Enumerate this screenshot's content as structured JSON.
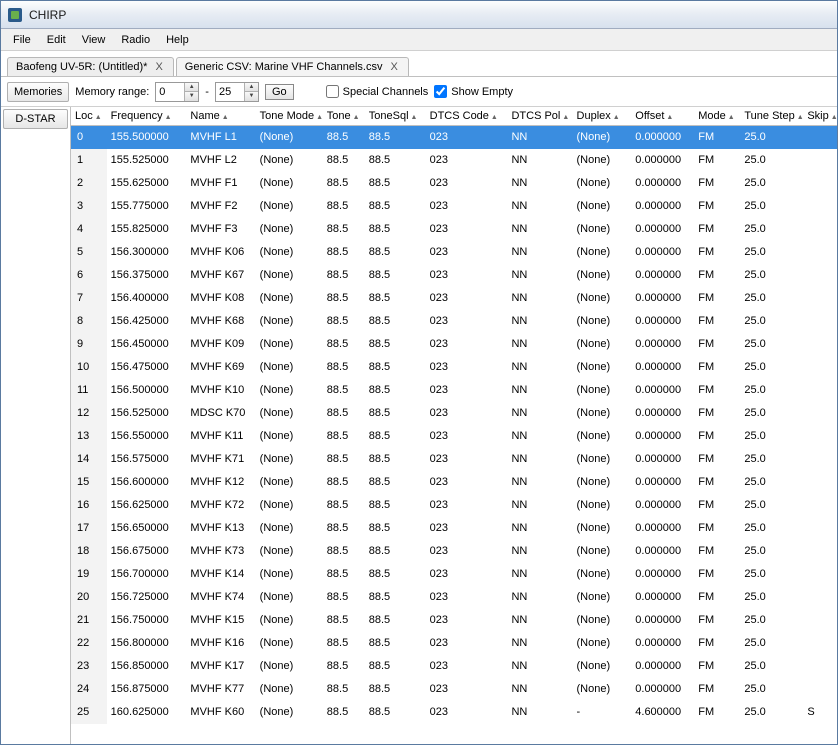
{
  "window": {
    "title": "CHIRP"
  },
  "menu": {
    "items": [
      "File",
      "Edit",
      "View",
      "Radio",
      "Help"
    ]
  },
  "tabs": [
    {
      "label": "Baofeng UV-5R: (Untitled)*",
      "active": false
    },
    {
      "label": "Generic CSV: Marine VHF Channels.csv",
      "active": true
    }
  ],
  "toolbar": {
    "memories_btn": "Memories",
    "range_label": "Memory range:",
    "range_from": "0",
    "range_dash": "-",
    "range_to": "25",
    "go_label": "Go",
    "special_label": "Special Channels",
    "special_checked": false,
    "showempty_label": "Show Empty",
    "showempty_checked": true
  },
  "side": {
    "dstar": "D-STAR"
  },
  "grid": {
    "columns": [
      "Loc",
      "Frequency",
      "Name",
      "Tone Mode",
      "Tone",
      "ToneSql",
      "DTCS Code",
      "DTCS Pol",
      "Duplex",
      "Offset",
      "Mode",
      "Tune Step",
      "Skip"
    ],
    "col_classes": [
      "col-loc",
      "col-freq",
      "col-name",
      "col-tmode",
      "col-tone",
      "col-tsql",
      "col-dcode",
      "col-dpol",
      "col-dup",
      "col-off",
      "col-mode",
      "col-tstep",
      "col-skip"
    ],
    "selected_index": 0,
    "rows": [
      {
        "loc": "0",
        "freq": "155.500000",
        "name": "MVHF L1",
        "tmode": "(None)",
        "tone": "88.5",
        "tsql": "88.5",
        "dcode": "023",
        "dpol": "NN",
        "dup": "",
        "off_display": "(None)",
        "off": "0.000000",
        "mode": "FM",
        "tstep": "25.0",
        "skip": ""
      },
      {
        "loc": "1",
        "freq": "155.525000",
        "name": "MVHF L2",
        "tmode": "(None)",
        "tone": "88.5",
        "tsql": "88.5",
        "dcode": "023",
        "dpol": "NN",
        "dup": "",
        "off_display": "(None)",
        "off": "0.000000",
        "mode": "FM",
        "tstep": "25.0",
        "skip": ""
      },
      {
        "loc": "2",
        "freq": "155.625000",
        "name": "MVHF F1",
        "tmode": "(None)",
        "tone": "88.5",
        "tsql": "88.5",
        "dcode": "023",
        "dpol": "NN",
        "dup": "",
        "off_display": "(None)",
        "off": "0.000000",
        "mode": "FM",
        "tstep": "25.0",
        "skip": ""
      },
      {
        "loc": "3",
        "freq": "155.775000",
        "name": "MVHF F2",
        "tmode": "(None)",
        "tone": "88.5",
        "tsql": "88.5",
        "dcode": "023",
        "dpol": "NN",
        "dup": "",
        "off_display": "(None)",
        "off": "0.000000",
        "mode": "FM",
        "tstep": "25.0",
        "skip": ""
      },
      {
        "loc": "4",
        "freq": "155.825000",
        "name": "MVHF F3",
        "tmode": "(None)",
        "tone": "88.5",
        "tsql": "88.5",
        "dcode": "023",
        "dpol": "NN",
        "dup": "",
        "off_display": "(None)",
        "off": "0.000000",
        "mode": "FM",
        "tstep": "25.0",
        "skip": ""
      },
      {
        "loc": "5",
        "freq": "156.300000",
        "name": "MVHF K06",
        "tmode": "(None)",
        "tone": "88.5",
        "tsql": "88.5",
        "dcode": "023",
        "dpol": "NN",
        "dup": "",
        "off_display": "(None)",
        "off": "0.000000",
        "mode": "FM",
        "tstep": "25.0",
        "skip": ""
      },
      {
        "loc": "6",
        "freq": "156.375000",
        "name": "MVHF K67",
        "tmode": "(None)",
        "tone": "88.5",
        "tsql": "88.5",
        "dcode": "023",
        "dpol": "NN",
        "dup": "",
        "off_display": "(None)",
        "off": "0.000000",
        "mode": "FM",
        "tstep": "25.0",
        "skip": ""
      },
      {
        "loc": "7",
        "freq": "156.400000",
        "name": "MVHF K08",
        "tmode": "(None)",
        "tone": "88.5",
        "tsql": "88.5",
        "dcode": "023",
        "dpol": "NN",
        "dup": "",
        "off_display": "(None)",
        "off": "0.000000",
        "mode": "FM",
        "tstep": "25.0",
        "skip": ""
      },
      {
        "loc": "8",
        "freq": "156.425000",
        "name": "MVHF K68",
        "tmode": "(None)",
        "tone": "88.5",
        "tsql": "88.5",
        "dcode": "023",
        "dpol": "NN",
        "dup": "",
        "off_display": "(None)",
        "off": "0.000000",
        "mode": "FM",
        "tstep": "25.0",
        "skip": ""
      },
      {
        "loc": "9",
        "freq": "156.450000",
        "name": "MVHF K09",
        "tmode": "(None)",
        "tone": "88.5",
        "tsql": "88.5",
        "dcode": "023",
        "dpol": "NN",
        "dup": "",
        "off_display": "(None)",
        "off": "0.000000",
        "mode": "FM",
        "tstep": "25.0",
        "skip": ""
      },
      {
        "loc": "10",
        "freq": "156.475000",
        "name": "MVHF K69",
        "tmode": "(None)",
        "tone": "88.5",
        "tsql": "88.5",
        "dcode": "023",
        "dpol": "NN",
        "dup": "",
        "off_display": "(None)",
        "off": "0.000000",
        "mode": "FM",
        "tstep": "25.0",
        "skip": ""
      },
      {
        "loc": "11",
        "freq": "156.500000",
        "name": "MVHF K10",
        "tmode": "(None)",
        "tone": "88.5",
        "tsql": "88.5",
        "dcode": "023",
        "dpol": "NN",
        "dup": "",
        "off_display": "(None)",
        "off": "0.000000",
        "mode": "FM",
        "tstep": "25.0",
        "skip": ""
      },
      {
        "loc": "12",
        "freq": "156.525000",
        "name": "MDSC K70",
        "tmode": "(None)",
        "tone": "88.5",
        "tsql": "88.5",
        "dcode": "023",
        "dpol": "NN",
        "dup": "",
        "off_display": "(None)",
        "off": "0.000000",
        "mode": "FM",
        "tstep": "25.0",
        "skip": ""
      },
      {
        "loc": "13",
        "freq": "156.550000",
        "name": "MVHF K11",
        "tmode": "(None)",
        "tone": "88.5",
        "tsql": "88.5",
        "dcode": "023",
        "dpol": "NN",
        "dup": "",
        "off_display": "(None)",
        "off": "0.000000",
        "mode": "FM",
        "tstep": "25.0",
        "skip": ""
      },
      {
        "loc": "14",
        "freq": "156.575000",
        "name": "MVHF K71",
        "tmode": "(None)",
        "tone": "88.5",
        "tsql": "88.5",
        "dcode": "023",
        "dpol": "NN",
        "dup": "",
        "off_display": "(None)",
        "off": "0.000000",
        "mode": "FM",
        "tstep": "25.0",
        "skip": ""
      },
      {
        "loc": "15",
        "freq": "156.600000",
        "name": "MVHF K12",
        "tmode": "(None)",
        "tone": "88.5",
        "tsql": "88.5",
        "dcode": "023",
        "dpol": "NN",
        "dup": "",
        "off_display": "(None)",
        "off": "0.000000",
        "mode": "FM",
        "tstep": "25.0",
        "skip": ""
      },
      {
        "loc": "16",
        "freq": "156.625000",
        "name": "MVHF K72",
        "tmode": "(None)",
        "tone": "88.5",
        "tsql": "88.5",
        "dcode": "023",
        "dpol": "NN",
        "dup": "",
        "off_display": "(None)",
        "off": "0.000000",
        "mode": "FM",
        "tstep": "25.0",
        "skip": ""
      },
      {
        "loc": "17",
        "freq": "156.650000",
        "name": "MVHF K13",
        "tmode": "(None)",
        "tone": "88.5",
        "tsql": "88.5",
        "dcode": "023",
        "dpol": "NN",
        "dup": "",
        "off_display": "(None)",
        "off": "0.000000",
        "mode": "FM",
        "tstep": "25.0",
        "skip": ""
      },
      {
        "loc": "18",
        "freq": "156.675000",
        "name": "MVHF K73",
        "tmode": "(None)",
        "tone": "88.5",
        "tsql": "88.5",
        "dcode": "023",
        "dpol": "NN",
        "dup": "",
        "off_display": "(None)",
        "off": "0.000000",
        "mode": "FM",
        "tstep": "25.0",
        "skip": ""
      },
      {
        "loc": "19",
        "freq": "156.700000",
        "name": "MVHF K14",
        "tmode": "(None)",
        "tone": "88.5",
        "tsql": "88.5",
        "dcode": "023",
        "dpol": "NN",
        "dup": "",
        "off_display": "(None)",
        "off": "0.000000",
        "mode": "FM",
        "tstep": "25.0",
        "skip": ""
      },
      {
        "loc": "20",
        "freq": "156.725000",
        "name": "MVHF K74",
        "tmode": "(None)",
        "tone": "88.5",
        "tsql": "88.5",
        "dcode": "023",
        "dpol": "NN",
        "dup": "",
        "off_display": "(None)",
        "off": "0.000000",
        "mode": "FM",
        "tstep": "25.0",
        "skip": ""
      },
      {
        "loc": "21",
        "freq": "156.750000",
        "name": "MVHF K15",
        "tmode": "(None)",
        "tone": "88.5",
        "tsql": "88.5",
        "dcode": "023",
        "dpol": "NN",
        "dup": "",
        "off_display": "(None)",
        "off": "0.000000",
        "mode": "FM",
        "tstep": "25.0",
        "skip": ""
      },
      {
        "loc": "22",
        "freq": "156.800000",
        "name": "MVHF K16",
        "tmode": "(None)",
        "tone": "88.5",
        "tsql": "88.5",
        "dcode": "023",
        "dpol": "NN",
        "dup": "",
        "off_display": "(None)",
        "off": "0.000000",
        "mode": "FM",
        "tstep": "25.0",
        "skip": ""
      },
      {
        "loc": "23",
        "freq": "156.850000",
        "name": "MVHF K17",
        "tmode": "(None)",
        "tone": "88.5",
        "tsql": "88.5",
        "dcode": "023",
        "dpol": "NN",
        "dup": "",
        "off_display": "(None)",
        "off": "0.000000",
        "mode": "FM",
        "tstep": "25.0",
        "skip": ""
      },
      {
        "loc": "24",
        "freq": "156.875000",
        "name": "MVHF K77",
        "tmode": "(None)",
        "tone": "88.5",
        "tsql": "88.5",
        "dcode": "023",
        "dpol": "NN",
        "dup": "",
        "off_display": "(None)",
        "off": "0.000000",
        "mode": "FM",
        "tstep": "25.0",
        "skip": ""
      },
      {
        "loc": "25",
        "freq": "160.625000",
        "name": "MVHF K60",
        "tmode": "(None)",
        "tone": "88.5",
        "tsql": "88.5",
        "dcode": "023",
        "dpol": "NN",
        "dup": "-",
        "off_display": "",
        "off": "4.600000",
        "mode": "FM",
        "tstep": "25.0",
        "skip": "S"
      }
    ]
  }
}
